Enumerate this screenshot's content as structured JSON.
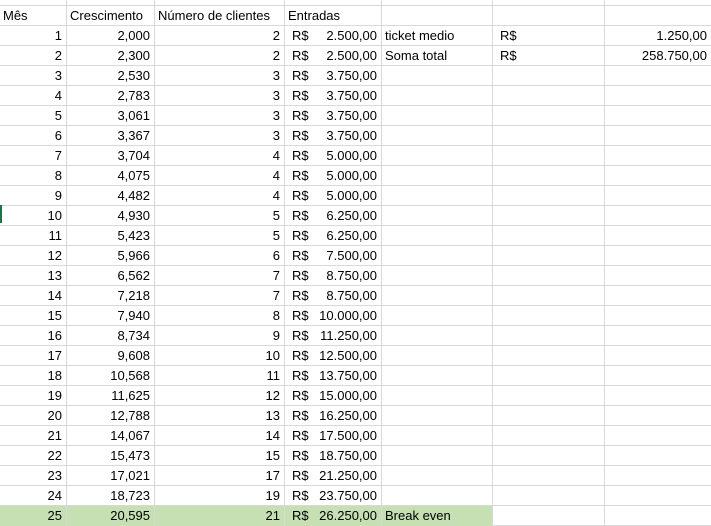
{
  "headers": {
    "mes": "Mês",
    "crescimento": "Crescimento",
    "clientes": "Número de clientes",
    "entradas": "Entradas"
  },
  "rows": [
    {
      "mes": "1",
      "crescimento": "2,000",
      "clientes": "2",
      "cur": "R$",
      "entrada": "2.500,00"
    },
    {
      "mes": "2",
      "crescimento": "2,300",
      "clientes": "2",
      "cur": "R$",
      "entrada": "2.500,00"
    },
    {
      "mes": "3",
      "crescimento": "2,530",
      "clientes": "3",
      "cur": "R$",
      "entrada": "3.750,00"
    },
    {
      "mes": "4",
      "crescimento": "2,783",
      "clientes": "3",
      "cur": "R$",
      "entrada": "3.750,00"
    },
    {
      "mes": "5",
      "crescimento": "3,061",
      "clientes": "3",
      "cur": "R$",
      "entrada": "3.750,00"
    },
    {
      "mes": "6",
      "crescimento": "3,367",
      "clientes": "3",
      "cur": "R$",
      "entrada": "3.750,00"
    },
    {
      "mes": "7",
      "crescimento": "3,704",
      "clientes": "4",
      "cur": "R$",
      "entrada": "5.000,00"
    },
    {
      "mes": "8",
      "crescimento": "4,075",
      "clientes": "4",
      "cur": "R$",
      "entrada": "5.000,00"
    },
    {
      "mes": "9",
      "crescimento": "4,482",
      "clientes": "4",
      "cur": "R$",
      "entrada": "5.000,00"
    },
    {
      "mes": "10",
      "crescimento": "4,930",
      "clientes": "5",
      "cur": "R$",
      "entrada": "6.250,00"
    },
    {
      "mes": "11",
      "crescimento": "5,423",
      "clientes": "5",
      "cur": "R$",
      "entrada": "6.250,00"
    },
    {
      "mes": "12",
      "crescimento": "5,966",
      "clientes": "6",
      "cur": "R$",
      "entrada": "7.500,00"
    },
    {
      "mes": "13",
      "crescimento": "6,562",
      "clientes": "7",
      "cur": "R$",
      "entrada": "8.750,00"
    },
    {
      "mes": "14",
      "crescimento": "7,218",
      "clientes": "7",
      "cur": "R$",
      "entrada": "8.750,00"
    },
    {
      "mes": "15",
      "crescimento": "7,940",
      "clientes": "8",
      "cur": "R$",
      "entrada": "10.000,00"
    },
    {
      "mes": "16",
      "crescimento": "8,734",
      "clientes": "9",
      "cur": "R$",
      "entrada": "11.250,00"
    },
    {
      "mes": "17",
      "crescimento": "9,608",
      "clientes": "10",
      "cur": "R$",
      "entrada": "12.500,00"
    },
    {
      "mes": "18",
      "crescimento": "10,568",
      "clientes": "11",
      "cur": "R$",
      "entrada": "13.750,00"
    },
    {
      "mes": "19",
      "crescimento": "11,625",
      "clientes": "12",
      "cur": "R$",
      "entrada": "15.000,00"
    },
    {
      "mes": "20",
      "crescimento": "12,788",
      "clientes": "13",
      "cur": "R$",
      "entrada": "16.250,00"
    },
    {
      "mes": "21",
      "crescimento": "14,067",
      "clientes": "14",
      "cur": "R$",
      "entrada": "17.500,00"
    },
    {
      "mes": "22",
      "crescimento": "15,473",
      "clientes": "15",
      "cur": "R$",
      "entrada": "18.750,00"
    },
    {
      "mes": "23",
      "crescimento": "17,021",
      "clientes": "17",
      "cur": "R$",
      "entrada": "21.250,00"
    },
    {
      "mes": "24",
      "crescimento": "18,723",
      "clientes": "19",
      "cur": "R$",
      "entrada": "23.750,00"
    },
    {
      "mes": "25",
      "crescimento": "20,595",
      "clientes": "21",
      "cur": "R$",
      "entrada": "26.250,00",
      "note": "Break even",
      "highlight": true
    }
  ],
  "summary": [
    {
      "label": "ticket medio",
      "cur": "R$",
      "value": "1.250,00"
    },
    {
      "label": "Soma total",
      "cur": "R$",
      "value": "258.750,00"
    }
  ],
  "colors": {
    "highlight": "#c6e0b4",
    "gridline": "#d9d9d9",
    "selection": "#217346"
  }
}
